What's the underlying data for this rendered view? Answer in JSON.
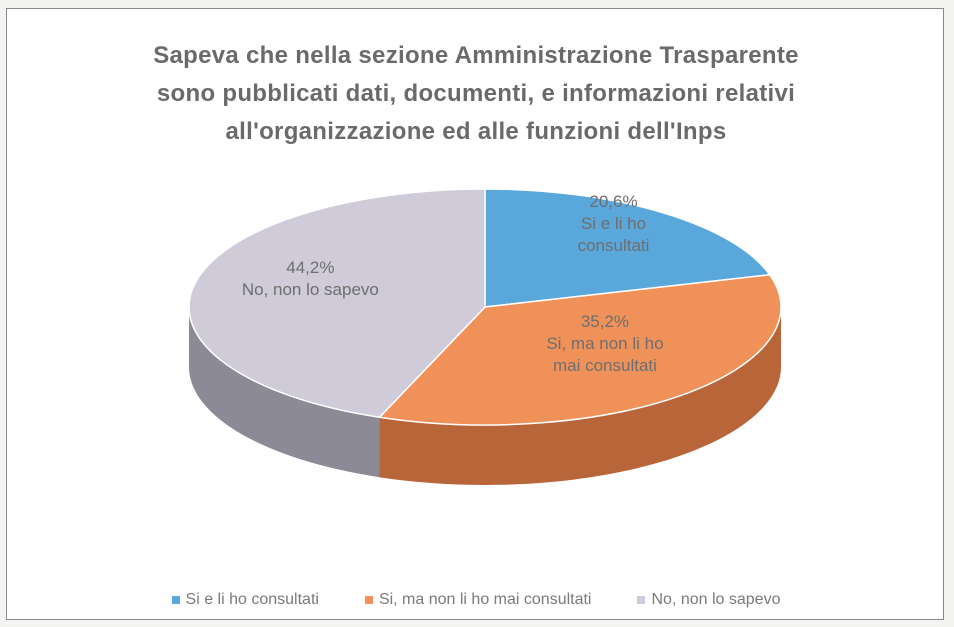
{
  "chart_data": {
    "type": "pie",
    "title_lines": [
      "Sapeva che nella sezione Amministrazione Trasparente",
      "sono pubblicati dati, documenti, e informazioni relativi",
      "all'organizzazione ed alle funzioni dell'Inps"
    ],
    "slices": [
      {
        "name": "Si e li ho consultati",
        "value": 20.6,
        "label_pct": "20,6%",
        "label_lines": [
          "Si e li ho",
          "consultati"
        ],
        "color": "#5aa7dc",
        "side_color": "#3d7fae"
      },
      {
        "name": "Si, ma non li ho mai consultati",
        "value": 35.2,
        "label_pct": "35,2%",
        "label_lines": [
          "Si, ma non li ho",
          "mai consultati"
        ],
        "color": "#f0915a",
        "side_color": "#b9653a"
      },
      {
        "name": "No, non lo sapevo",
        "value": 44.2,
        "label_pct": "44,2%",
        "label_lines": [
          "No, non lo sapevo"
        ],
        "color": "#cfcbd8",
        "side_color": "#8d8a97"
      }
    ],
    "legend_position": "bottom",
    "style": "3d"
  }
}
